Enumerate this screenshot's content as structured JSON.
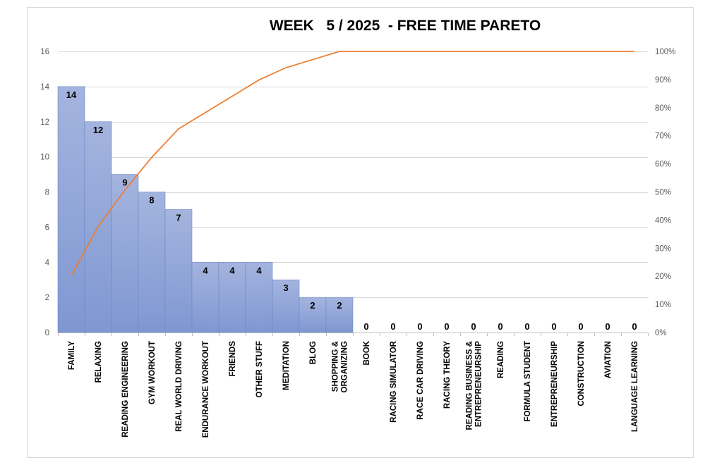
{
  "chart_data": {
    "type": "bar",
    "title": "WEEK   5 / 2025  - FREE TIME PARETO",
    "categories": [
      "FAMILY",
      "RELAXING",
      "READING ENGINEERING",
      "GYM WORKOUT",
      "REAL WORLD DRIVING",
      "ENDURANCE WORKOUT",
      "FRIENDS",
      "OTHER STUFF",
      "MEDITATION",
      "BLOG",
      "SHOPPING & ORGANIZING",
      "BOOK",
      "RACING SIMULATOR",
      "RACE CAR DRIVING",
      "RACING THEORY",
      "READING BUSINESS & ENTREPRENEURSHIP",
      "READING",
      "FORMULA STUDENT",
      "ENTREPRENEURSHIP",
      "CONSTRUCTION",
      "AVIATION",
      "LANGUAGE LEARNING"
    ],
    "series": [
      {
        "type": "bar",
        "axis": "left",
        "color": "#8ea3d6",
        "values": [
          14,
          12,
          9,
          8,
          7,
          4,
          4,
          4,
          3,
          2,
          2,
          0,
          0,
          0,
          0,
          0,
          0,
          0,
          0,
          0,
          0,
          0
        ]
      },
      {
        "type": "line",
        "axis": "right",
        "color": "#ed7d31",
        "values": [
          0.2029,
          0.3768,
          0.5072,
          0.6232,
          0.7246,
          0.7826,
          0.8406,
          0.8986,
          0.942,
          0.971,
          1,
          1,
          1,
          1,
          1,
          1,
          1,
          1,
          1,
          1,
          1,
          1
        ]
      }
    ],
    "ylim": [
      0,
      16
    ],
    "yticks": [
      0,
      2,
      4,
      6,
      8,
      10,
      12,
      14,
      16
    ],
    "y2lim": [
      0,
      1
    ],
    "y2ticks": [
      "0%",
      "10%",
      "20%",
      "30%",
      "40%",
      "50%",
      "60%",
      "70%",
      "80%",
      "90%",
      "100%"
    ],
    "grid": true,
    "legend": "none"
  }
}
